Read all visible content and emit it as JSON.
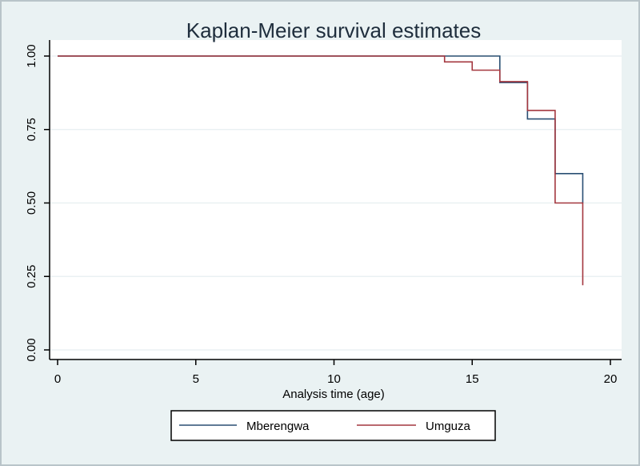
{
  "chart_data": {
    "type": "line",
    "title": "Kaplan-Meier survival estimates",
    "xlabel": "Analysis time (age)",
    "ylabel": "",
    "xlim": [
      0,
      20
    ],
    "ylim": [
      0,
      1
    ],
    "x_ticks": [
      "0",
      "5",
      "10",
      "15",
      "20"
    ],
    "x_tick_values": [
      0,
      5,
      10,
      15,
      20
    ],
    "y_ticks": [
      "0.00",
      "0.25",
      "0.50",
      "0.75",
      "1.00"
    ],
    "y_tick_values": [
      0,
      0.25,
      0.5,
      0.75,
      1.0
    ],
    "grid": true,
    "legend_position": "bottom",
    "step": true,
    "series": [
      {
        "name": "Mberengwa",
        "color": "#2a4f73",
        "x": [
          0,
          16,
          17,
          18,
          19
        ],
        "y": [
          1.0,
          0.91,
          0.786,
          0.6,
          0.5
        ],
        "x_end": 19
      },
      {
        "name": "Umguza",
        "color": "#a4373f",
        "x": [
          0,
          14,
          15,
          16,
          17,
          18,
          19
        ],
        "y": [
          1.0,
          0.98,
          0.952,
          0.913,
          0.815,
          0.5,
          0.22
        ],
        "x_end": 19
      }
    ]
  }
}
